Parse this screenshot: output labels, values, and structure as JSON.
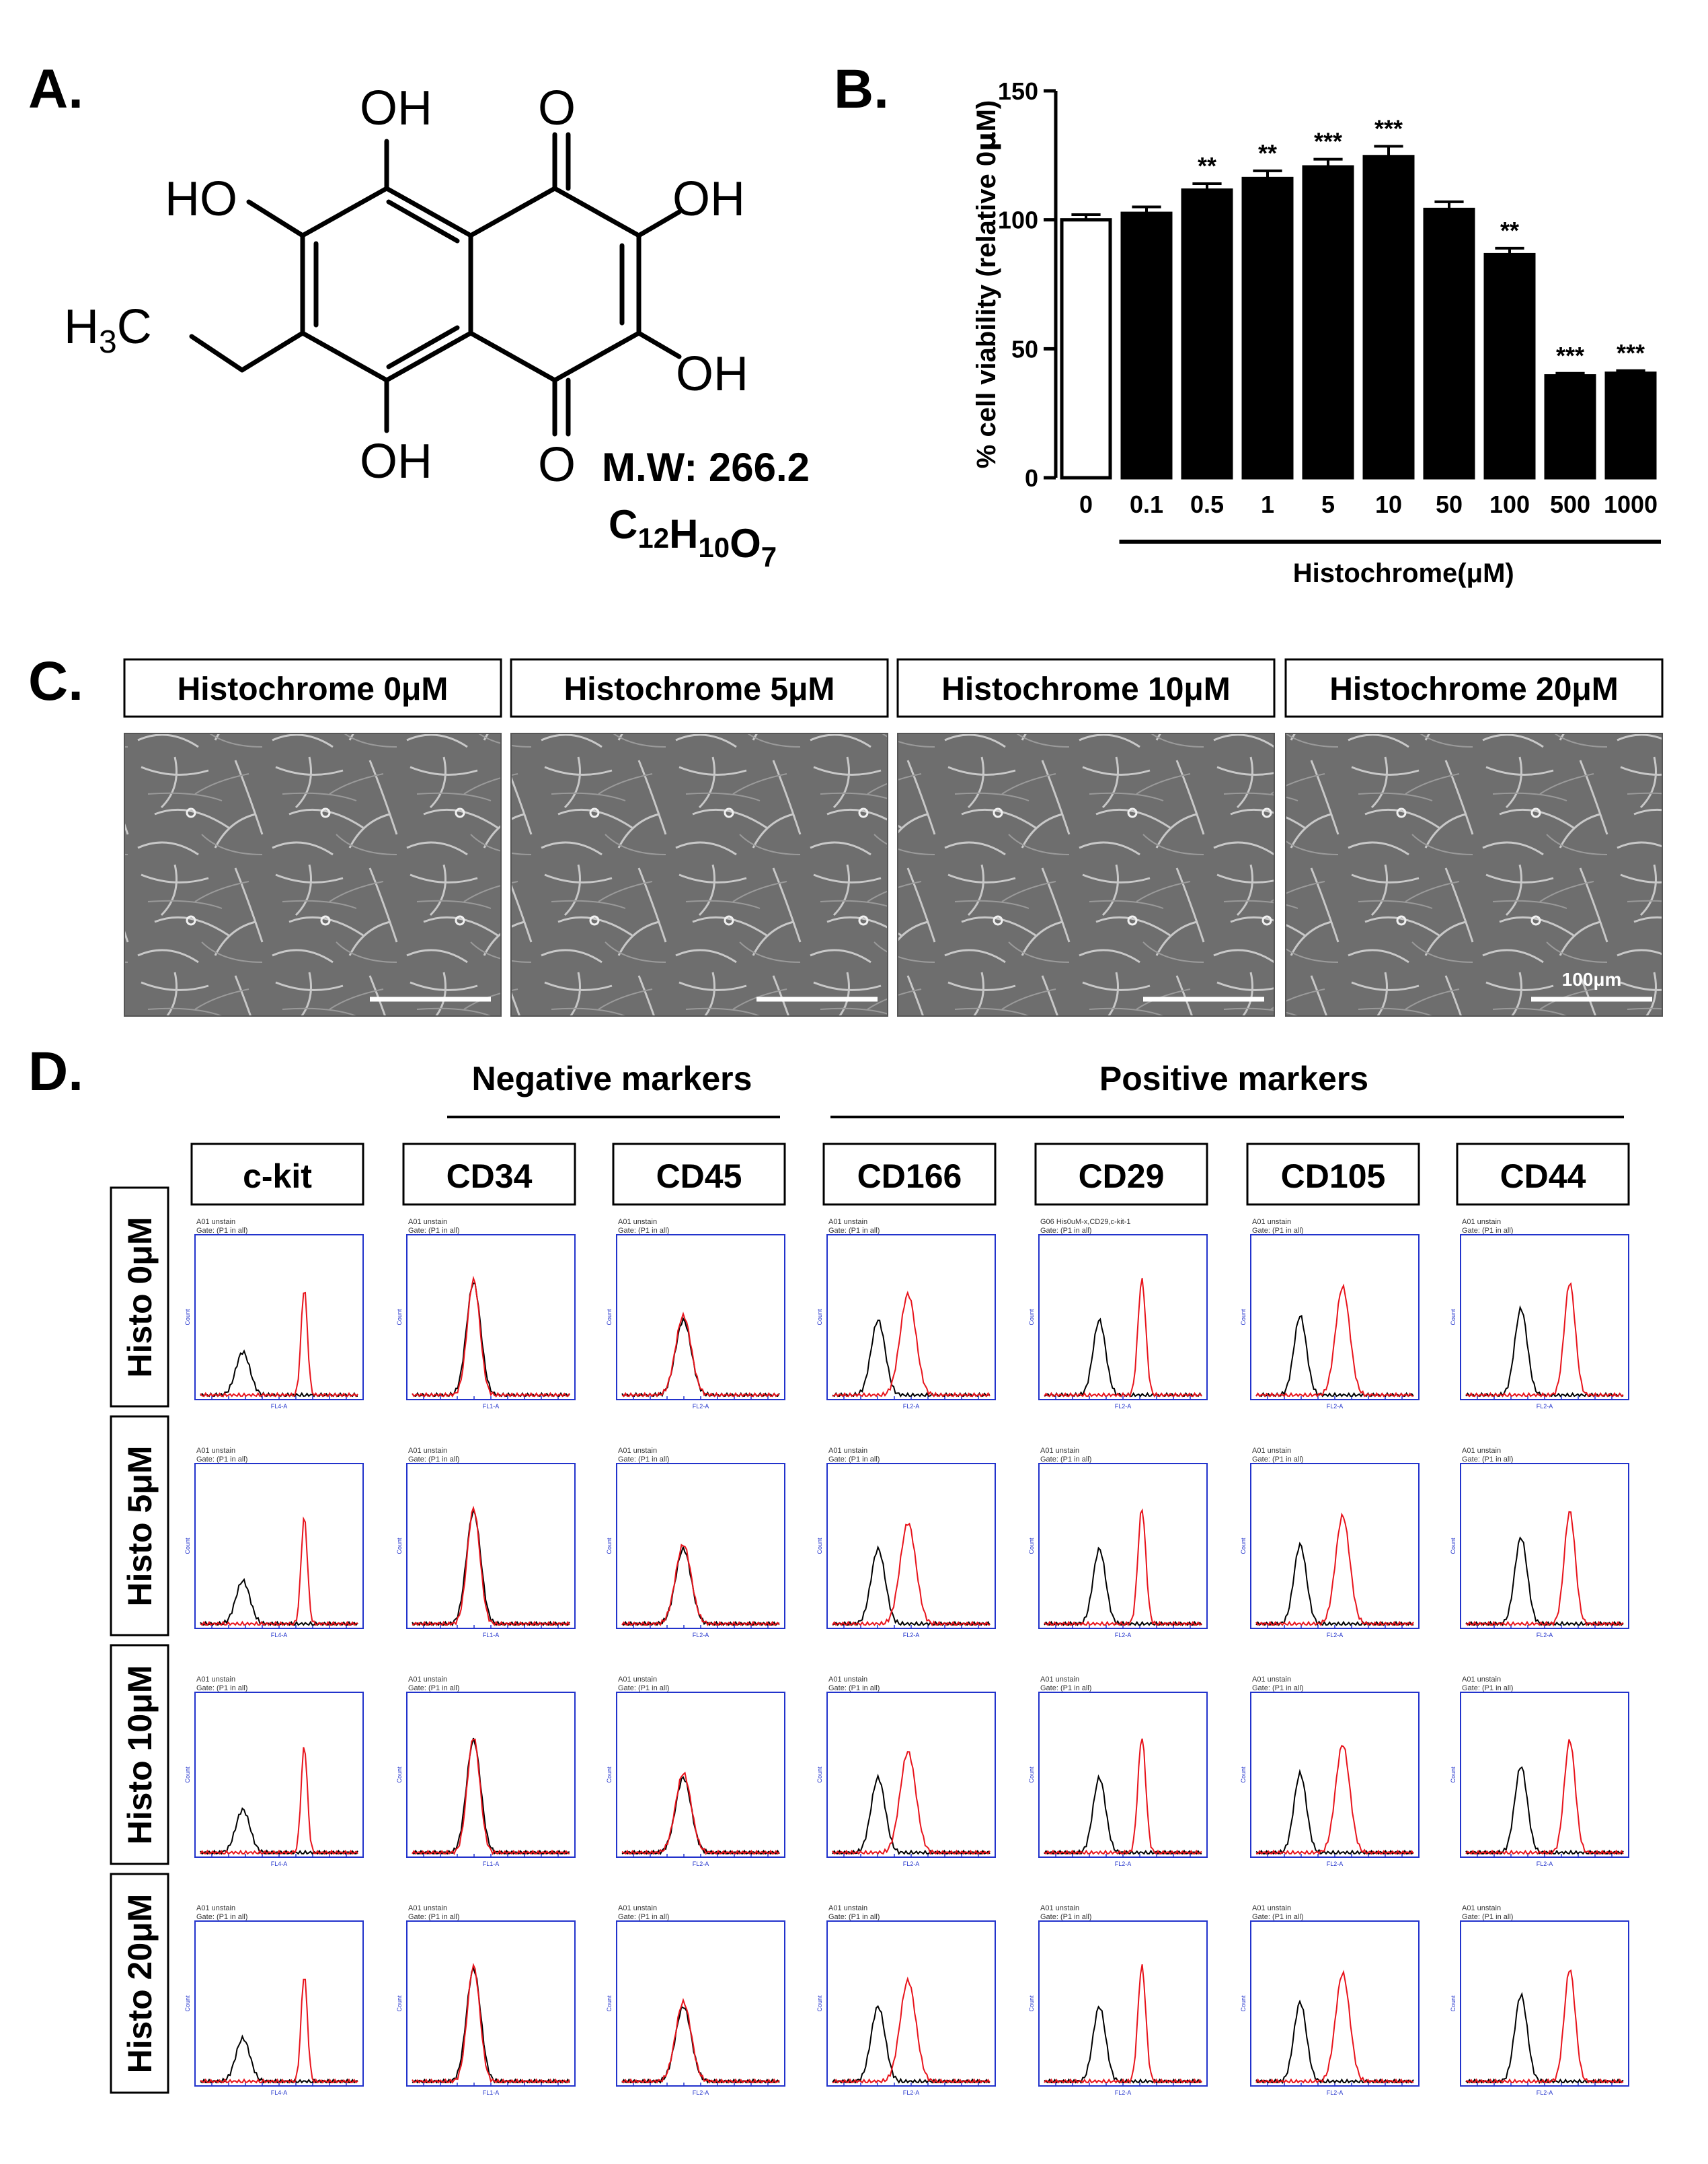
{
  "panel_labels": {
    "a": "A.",
    "b": "B.",
    "c": "C.",
    "d": "D."
  },
  "structure": {
    "groups": [
      "OH",
      "O",
      "HO",
      "OH",
      "OH",
      "OH",
      "O"
    ],
    "methyl": {
      "main": "H",
      "sub": "3",
      "tail": "C"
    },
    "mw": "M.W: 266.2",
    "formula": [
      {
        "t": "C",
        "sub": "12"
      },
      {
        "t": "H",
        "sub": "10"
      },
      {
        "t": "O",
        "sub": "7"
      }
    ]
  },
  "chart_data": {
    "type": "bar",
    "ylabel_prefix": "% cell viability (relative 0",
    "ylabel_mu": "μ",
    "ylabel_suffix": "M)",
    "xlabel": "Histochrome(μM)",
    "categories": [
      "0",
      "0.1",
      "0.5",
      "1",
      "5",
      "10",
      "50",
      "100",
      "500",
      "1000"
    ],
    "values": [
      100,
      102.5,
      111.5,
      116,
      120.5,
      124.5,
      104,
      86.5,
      39.5,
      40.5
    ],
    "errors": [
      2,
      2.5,
      2.5,
      3,
      3,
      4,
      3,
      2.5,
      1,
      1
    ],
    "significance": [
      "",
      "",
      "**",
      "**",
      "***",
      "***",
      "",
      "**",
      "***",
      "***"
    ],
    "bar_colors": [
      "#ffffff",
      "#000000",
      "#000000",
      "#000000",
      "#000000",
      "#000000",
      "#000000",
      "#000000",
      "#000000",
      "#000000"
    ],
    "yticks": [
      0,
      50,
      100,
      150
    ],
    "ylim": [
      0,
      150
    ],
    "grid": false,
    "legend": "none"
  },
  "micrographs": {
    "labels": [
      "Histochrome 0μM",
      "Histochrome 5μM",
      "Histochrome 10μM",
      "Histochrome 20μM"
    ],
    "scale_bar_label": "100μm"
  },
  "flow": {
    "negative_label": "Negative markers",
    "positive_label": "Positive markers",
    "markers": [
      "c-kit",
      "CD34",
      "CD45",
      "CD166",
      "CD29",
      "CD105",
      "CD44"
    ],
    "rows": [
      "Histo 0μM",
      "Histo 5μM",
      "Histo 10μM",
      "Histo 20μM"
    ],
    "plot_title": "A01 unstain",
    "plot_title_alt": "G06 His0uM-x,CD29,c-kit-1",
    "plot_gate": "Gate: (P1 in all)",
    "plot_ylabel": "Count",
    "channels": [
      "FL4-A",
      "FL1-A",
      "FL2-A",
      "FL2-A",
      "FL2-A",
      "FL2-A",
      "FL2-A"
    ],
    "control_color": "#000000",
    "stained_color": "#e8141c",
    "axis_color": "#2233cc"
  }
}
